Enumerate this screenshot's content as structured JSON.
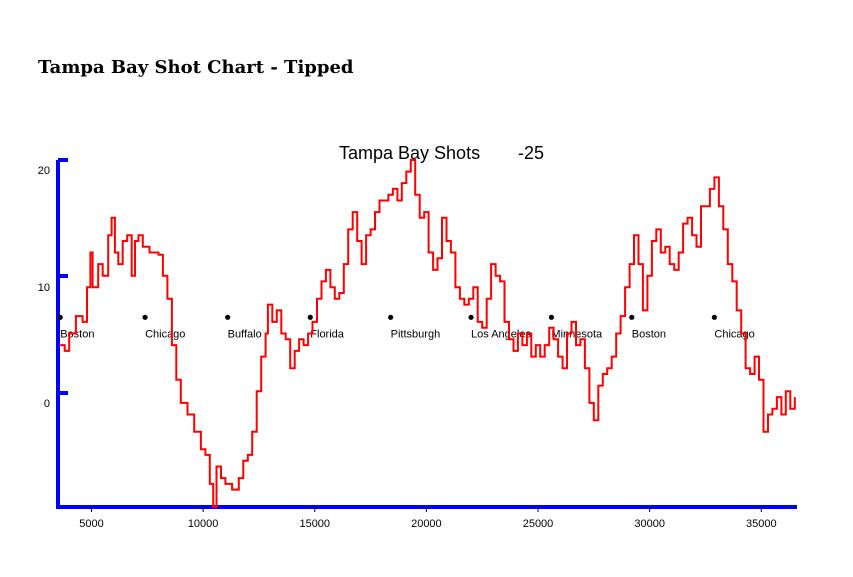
{
  "page": {
    "title": "Tampa Bay Shot Chart - Tipped"
  },
  "chart_data": {
    "type": "line",
    "title": "Tampa Bay Shots",
    "final_value_label": "-25",
    "xlabel": "",
    "ylabel": "",
    "xlim": [
      3500,
      36600
    ],
    "ylim": [
      -9,
      21
    ],
    "x_ticks": [
      5000,
      10000,
      15000,
      20000,
      25000,
      30000,
      35000
    ],
    "y_ticks": [
      0,
      10,
      20
    ],
    "grid": false,
    "colors": {
      "axis": "#0000ff",
      "line": "#ff0000",
      "marker": "#000000"
    },
    "game_markers": [
      {
        "label": "Boston",
        "x": 3600,
        "y": 7.4
      },
      {
        "label": "Chicago",
        "x": 7400,
        "y": 7.4
      },
      {
        "label": "Buffalo",
        "x": 11100,
        "y": 7.4
      },
      {
        "label": "Florida",
        "x": 14800,
        "y": 7.4
      },
      {
        "label": "Pittsburgh",
        "x": 18400,
        "y": 7.4
      },
      {
        "label": "Los Angeles",
        "x": 22000,
        "y": 7.4
      },
      {
        "label": "Minnesota",
        "x": 25600,
        "y": 7.4
      },
      {
        "label": "Boston",
        "x": 29200,
        "y": 7.4
      },
      {
        "label": "Chicago",
        "x": 32900,
        "y": 7.4
      }
    ],
    "series": [
      {
        "points": [
          [
            3600,
            5.0
          ],
          [
            3800,
            4.5
          ],
          [
            4000,
            6.0
          ],
          [
            4300,
            7.5
          ],
          [
            4600,
            7.0
          ],
          [
            4800,
            10.0
          ],
          [
            4950,
            13.0
          ],
          [
            5050,
            10.0
          ],
          [
            5300,
            12.0
          ],
          [
            5500,
            11.0
          ],
          [
            5750,
            14.5
          ],
          [
            5900,
            16.0
          ],
          [
            6050,
            13.0
          ],
          [
            6200,
            12.0
          ],
          [
            6400,
            14.0
          ],
          [
            6600,
            14.5
          ],
          [
            6800,
            11.0
          ],
          [
            6950,
            14.0
          ],
          [
            7100,
            14.5
          ],
          [
            7300,
            13.5
          ],
          [
            7600,
            13.0
          ],
          [
            8000,
            12.8
          ],
          [
            8200,
            11.0
          ],
          [
            8400,
            9.0
          ],
          [
            8600,
            5.0
          ],
          [
            8800,
            2.0
          ],
          [
            9000,
            0.0
          ],
          [
            9300,
            -1.0
          ],
          [
            9600,
            -2.5
          ],
          [
            9900,
            -4.0
          ],
          [
            10100,
            -4.5
          ],
          [
            10300,
            -7.0
          ],
          [
            10450,
            -9.0
          ],
          [
            10600,
            -5.5
          ],
          [
            10800,
            -6.5
          ],
          [
            11000,
            -7.0
          ],
          [
            11300,
            -7.5
          ],
          [
            11600,
            -6.5
          ],
          [
            11800,
            -5.0
          ],
          [
            12000,
            -4.5
          ],
          [
            12200,
            -2.5
          ],
          [
            12400,
            1.0
          ],
          [
            12600,
            4.0
          ],
          [
            12800,
            6.0
          ],
          [
            12900,
            8.5
          ],
          [
            13100,
            7.0
          ],
          [
            13300,
            8.0
          ],
          [
            13500,
            6.0
          ],
          [
            13700,
            5.5
          ],
          [
            13900,
            3.0
          ],
          [
            14100,
            4.5
          ],
          [
            14300,
            5.5
          ],
          [
            14500,
            5.0
          ],
          [
            14700,
            6.0
          ],
          [
            14900,
            7.0
          ],
          [
            15100,
            9.0
          ],
          [
            15300,
            10.5
          ],
          [
            15500,
            11.5
          ],
          [
            15700,
            10.0
          ],
          [
            15900,
            9.0
          ],
          [
            16100,
            9.5
          ],
          [
            16300,
            12.0
          ],
          [
            16500,
            15.0
          ],
          [
            16700,
            16.5
          ],
          [
            16900,
            14.0
          ],
          [
            17100,
            12.0
          ],
          [
            17300,
            14.5
          ],
          [
            17500,
            15.0
          ],
          [
            17700,
            16.5
          ],
          [
            17900,
            17.5
          ],
          [
            18100,
            17.5
          ],
          [
            18300,
            18.0
          ],
          [
            18500,
            18.5
          ],
          [
            18700,
            17.5
          ],
          [
            18900,
            19.0
          ],
          [
            19100,
            20.0
          ],
          [
            19300,
            21.0
          ],
          [
            19500,
            18.0
          ],
          [
            19700,
            16.0
          ],
          [
            19900,
            16.5
          ],
          [
            20100,
            13.0
          ],
          [
            20300,
            11.5
          ],
          [
            20500,
            12.5
          ],
          [
            20700,
            16.0
          ],
          [
            20900,
            14.0
          ],
          [
            21100,
            13.0
          ],
          [
            21300,
            10.0
          ],
          [
            21500,
            9.0
          ],
          [
            21700,
            8.5
          ],
          [
            21900,
            9.0
          ],
          [
            22100,
            10.0
          ],
          [
            22300,
            7.0
          ],
          [
            22500,
            6.5
          ],
          [
            22700,
            9.0
          ],
          [
            22900,
            12.0
          ],
          [
            23100,
            11.0
          ],
          [
            23300,
            10.5
          ],
          [
            23500,
            7.0
          ],
          [
            23700,
            5.5
          ],
          [
            23900,
            4.5
          ],
          [
            24100,
            6.0
          ],
          [
            24300,
            5.0
          ],
          [
            24500,
            6.0
          ],
          [
            24700,
            4.0
          ],
          [
            24900,
            5.0
          ],
          [
            25100,
            4.0
          ],
          [
            25300,
            5.0
          ],
          [
            25500,
            6.5
          ],
          [
            25700,
            5.5
          ],
          [
            25900,
            4.0
          ],
          [
            26100,
            3.0
          ],
          [
            26300,
            6.0
          ],
          [
            26500,
            7.0
          ],
          [
            26700,
            5.0
          ],
          [
            26900,
            5.5
          ],
          [
            27100,
            3.0
          ],
          [
            27300,
            0.0
          ],
          [
            27500,
            -1.5
          ],
          [
            27700,
            1.5
          ],
          [
            27900,
            2.5
          ],
          [
            28100,
            3.0
          ],
          [
            28300,
            4.0
          ],
          [
            28500,
            6.0
          ],
          [
            28700,
            7.5
          ],
          [
            28900,
            10.0
          ],
          [
            29100,
            12.0
          ],
          [
            29300,
            14.5
          ],
          [
            29500,
            12.0
          ],
          [
            29700,
            8.0
          ],
          [
            29900,
            11.0
          ],
          [
            30100,
            14.0
          ],
          [
            30300,
            15.0
          ],
          [
            30500,
            13.0
          ],
          [
            30700,
            13.5
          ],
          [
            30900,
            12.0
          ],
          [
            31100,
            11.5
          ],
          [
            31300,
            13.0
          ],
          [
            31500,
            15.5
          ],
          [
            31700,
            16.0
          ],
          [
            31900,
            14.5
          ],
          [
            32100,
            13.5
          ],
          [
            32300,
            17.0
          ],
          [
            32500,
            17.0
          ],
          [
            32700,
            18.5
          ],
          [
            32900,
            19.5
          ],
          [
            33100,
            17.0
          ],
          [
            33300,
            15.0
          ],
          [
            33500,
            12.0
          ],
          [
            33700,
            10.5
          ],
          [
            33900,
            8.0
          ],
          [
            34100,
            6.0
          ],
          [
            34300,
            3.0
          ],
          [
            34500,
            2.5
          ],
          [
            34700,
            4.0
          ],
          [
            34900,
            2.0
          ],
          [
            35100,
            -2.5
          ],
          [
            35300,
            -1.0
          ],
          [
            35500,
            -0.5
          ],
          [
            35700,
            0.5
          ],
          [
            35900,
            -1.0
          ],
          [
            36100,
            1.0
          ],
          [
            36300,
            -0.5
          ],
          [
            36500,
            0.5
          ]
        ]
      }
    ]
  }
}
